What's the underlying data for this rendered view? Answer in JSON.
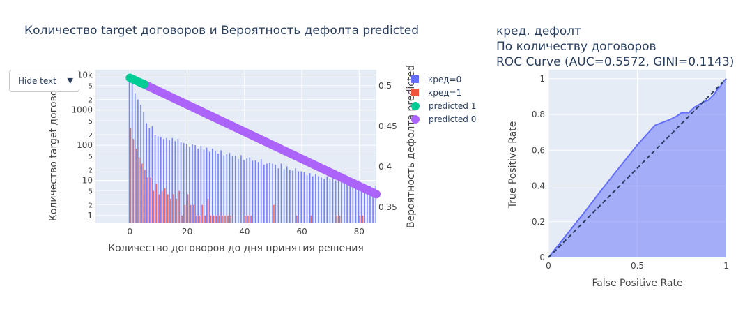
{
  "dropdown": {
    "label": "Hide text"
  },
  "legend": [
    {
      "label": "кред=0",
      "color": "#636efa",
      "shape": "square"
    },
    {
      "label": "кред=1",
      "color": "#ef553b",
      "shape": "square"
    },
    {
      "label": "predicted 1",
      "color": "#00cc96",
      "shape": "circle"
    },
    {
      "label": "predicted 0",
      "color": "#ab63fa",
      "shape": "circle"
    }
  ],
  "chart_data": [
    {
      "type": "bar",
      "title": "Количество target договоров и Вероятность дефолта predicted",
      "xlabel": "Количество договоров до дня принятия решения",
      "ylabel": "Количество target договоров",
      "y2label": "Вероятность дефолта predicted",
      "y_scale": "log",
      "xlim": [
        -12,
        86
      ],
      "ylim": [
        0.6,
        14000
      ],
      "y2lim": [
        0.33,
        0.52
      ],
      "xticks": [
        "0",
        "20",
        "40",
        "60",
        "80"
      ],
      "yticks": [
        "1",
        "2",
        "5",
        "10",
        "2",
        "5",
        "100",
        "2",
        "5",
        "1000",
        "2",
        "5",
        "10k"
      ],
      "y2ticks": [
        "0.35",
        "0.4",
        "0.45",
        "0.5"
      ],
      "series": [
        {
          "name": "кред=0",
          "x": [
            0,
            1,
            2,
            3,
            4,
            5,
            6,
            7,
            8,
            9,
            10,
            11,
            12,
            13,
            14,
            15,
            16,
            17,
            18,
            19,
            20,
            21,
            22,
            23,
            24,
            25,
            26,
            27,
            28,
            29,
            30,
            31,
            32,
            33,
            34,
            35,
            36,
            37,
            38,
            39,
            40,
            41,
            42,
            43,
            44,
            45,
            46,
            47,
            48,
            49,
            50,
            51,
            52,
            53,
            54,
            55,
            56,
            57,
            58,
            59,
            60,
            61,
            62,
            63,
            64,
            65,
            66,
            67,
            68,
            69,
            70,
            71,
            72,
            73,
            74,
            75,
            76,
            77,
            78,
            79,
            80,
            81,
            82,
            83,
            84,
            85,
            86
          ],
          "values": [
            9000,
            6500,
            3000,
            2000,
            1400,
            900,
            420,
            300,
            350,
            200,
            180,
            170,
            150,
            160,
            140,
            160,
            130,
            150,
            120,
            115,
            110,
            90,
            105,
            100,
            80,
            95,
            75,
            85,
            65,
            80,
            70,
            58,
            72,
            52,
            55,
            60,
            48,
            50,
            40,
            52,
            38,
            42,
            45,
            36,
            37,
            33,
            40,
            28,
            30,
            32,
            30,
            28,
            22,
            30,
            21,
            25,
            20,
            19,
            22,
            18,
            18,
            17,
            14,
            16,
            13,
            15,
            13,
            12,
            11,
            13,
            11,
            12,
            10,
            11,
            9,
            10,
            10,
            9,
            8,
            8,
            10,
            8,
            7,
            6,
            7,
            6,
            7
          ]
        },
        {
          "name": "кред=1",
          "x": [
            0,
            1,
            2,
            3,
            4,
            5,
            6,
            7,
            8,
            9,
            10,
            11,
            12,
            13,
            14,
            15,
            16,
            17,
            18,
            19,
            20,
            21,
            22,
            23,
            24,
            25,
            26,
            27,
            28,
            29,
            30,
            31,
            32,
            33,
            34,
            35,
            36,
            37,
            38,
            39,
            40,
            41,
            42,
            43,
            44,
            45,
            46,
            47,
            48,
            49,
            50,
            51,
            52,
            53,
            54,
            55,
            56,
            57,
            58,
            59,
            60,
            61,
            62,
            63,
            64,
            65,
            66,
            67,
            68,
            69,
            70,
            71,
            72,
            73,
            74,
            75,
            76,
            77,
            78,
            79,
            80,
            81,
            82,
            83,
            84,
            85,
            86
          ],
          "values": [
            300,
            150,
            80,
            45,
            30,
            20,
            12,
            12,
            5,
            8,
            4,
            5,
            6,
            4,
            3,
            4,
            3,
            5,
            1,
            2,
            4,
            2,
            2,
            1,
            1,
            2,
            1,
            3,
            1,
            1,
            1,
            1,
            1,
            1,
            1,
            1,
            0,
            0,
            0,
            0,
            1,
            1,
            1,
            0,
            0,
            0,
            0,
            0,
            0,
            0,
            2,
            0,
            0,
            0,
            0,
            0,
            0,
            0,
            1,
            0,
            0,
            0,
            0,
            1,
            0,
            0,
            0,
            0,
            0,
            0,
            0,
            0,
            1,
            1,
            0,
            0,
            0,
            0,
            0,
            0,
            1,
            1,
            0,
            0,
            0,
            0,
            0
          ]
        },
        {
          "name": "predicted 1",
          "axis": "y2",
          "x": [
            0,
            5
          ],
          "values": [
            0.51,
            0.502
          ]
        },
        {
          "name": "predicted 0",
          "axis": "y2",
          "x": [
            5,
            86
          ],
          "values": [
            0.502,
            0.366
          ]
        }
      ]
    },
    {
      "type": "area",
      "title_lines": [
        "кред. дефолт",
        "По количеству договоров",
        "ROC Curve (AUC=0.5572, GINI=0.1143)"
      ],
      "xlabel": "False Positive Rate",
      "ylabel": "True Positive Rate",
      "xlim": [
        0,
        1
      ],
      "ylim": [
        0,
        1.05
      ],
      "xticks": [
        "0",
        "0.5",
        "1"
      ],
      "yticks": [
        "0",
        "0.2",
        "0.4",
        "0.6",
        "0.8",
        "1"
      ],
      "grid": true,
      "series": [
        {
          "name": "ROC",
          "x": [
            0,
            0.08,
            0.2,
            0.3,
            0.42,
            0.5,
            0.6,
            0.68,
            0.72,
            0.75,
            0.79,
            0.82,
            0.84,
            0.87,
            0.9,
            0.93,
            0.95,
            0.97,
            0.98,
            1.0
          ],
          "values": [
            0,
            0.1,
            0.25,
            0.38,
            0.53,
            0.63,
            0.74,
            0.77,
            0.79,
            0.81,
            0.81,
            0.84,
            0.85,
            0.87,
            0.88,
            0.91,
            0.94,
            0.96,
            0.98,
            1.0
          ]
        },
        {
          "name": "diagonal",
          "x": [
            0,
            1
          ],
          "values": [
            0,
            1
          ]
        }
      ]
    }
  ]
}
